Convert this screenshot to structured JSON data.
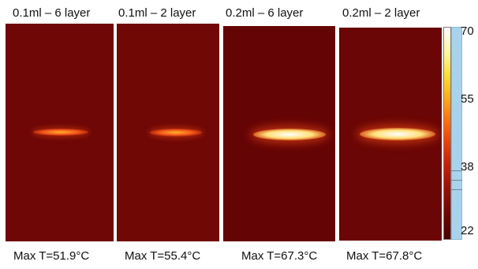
{
  "panels": [
    {
      "title": "0.1ml – 6 layer",
      "max_temp": "Max T=51.9°C",
      "hotspot_level": 0.34
    },
    {
      "title": "0.1ml – 2 layer",
      "max_temp": "Max T=55.4°C",
      "hotspot_level": 0.4
    },
    {
      "title": "0.2ml – 6 layer",
      "max_temp": "Max T=67.3°C",
      "hotspot_level": 0.85
    },
    {
      "title": "0.2ml – 2 layer",
      "max_temp": "Max T=67.8°C",
      "hotspot_level": 0.9
    }
  ],
  "colorbar": {
    "ticks": [
      "70",
      "55",
      "38",
      "22"
    ],
    "tick_values": [
      70,
      55,
      38,
      22
    ],
    "range": [
      22,
      70
    ],
    "colormap": "heat"
  },
  "colors": {
    "background_field": "#6e0706",
    "hot_core": "#ffffff",
    "hot_glow": "#ffd23a"
  }
}
